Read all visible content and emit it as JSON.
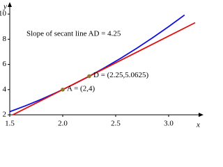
{
  "chart_data": {
    "type": "line",
    "annotation": "Slope of secant line AD = 4.25",
    "x_label": "x",
    "y_label": "y",
    "xlim": [
      1.5,
      3.3
    ],
    "ylim": [
      2,
      10.8
    ],
    "xticks": [
      1.5,
      {
        "value": 2,
        "label": "2.0"
      },
      2.5,
      {
        "value": 3,
        "label": "3.0"
      }
    ],
    "yticks": [
      2,
      4,
      6,
      8,
      10
    ],
    "series": [
      {
        "color": "#1010e0",
        "x": [
          1.5,
          1.65,
          1.8,
          1.95,
          2.1,
          2.25,
          2.4,
          2.55,
          2.7,
          2.85,
          3.0,
          3.15
        ],
        "values": [
          2.25,
          2.7225,
          3.24,
          3.8025,
          4.41,
          5.0625,
          5.76,
          6.5025,
          7.29,
          8.1225,
          9.0,
          9.9225
        ]
      },
      {
        "color": "#e01010",
        "x": [
          1.53,
          3.25
        ],
        "values": [
          2.0025,
          9.3125
        ]
      }
    ],
    "points": [
      {
        "label": "A = (2,4)",
        "x": 2,
        "y": 4
      },
      {
        "label": "D = (2.25,5.0625)",
        "x": 2.25,
        "y": 5.0625
      }
    ],
    "point_color": "#8a7a2a"
  }
}
